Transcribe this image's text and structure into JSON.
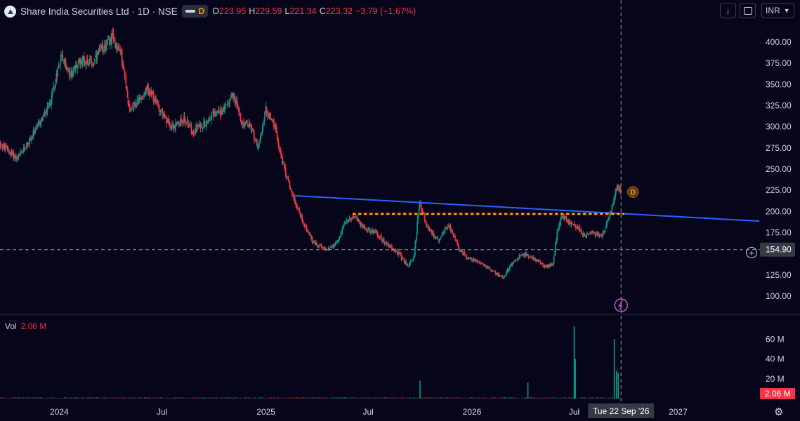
{
  "header": {
    "symbol_title": "Share India Securities Ltd · 1D · NSE",
    "badge": "D",
    "ohlc": [
      {
        "k": "O",
        "v": "223.95"
      },
      {
        "k": "H",
        "v": "229.59"
      },
      {
        "k": "L",
        "v": "221.34"
      },
      {
        "k": "C",
        "v": "223.32"
      },
      {
        "k": "",
        "v": "−3.79 (−1.67%)"
      }
    ]
  },
  "toolbar": {
    "currency": "INR"
  },
  "volume_pane": {
    "label": "Vol",
    "value": "2.06 M"
  },
  "price_marker": "154.90",
  "crosshair_date": "Tue 22 Sep '26",
  "volume_marker": "2.06 M",
  "event_badge": "D",
  "colors": {
    "up": "#089981",
    "down": "#f23645",
    "trendline": "#2962ff",
    "dotted": "#ff9800",
    "background": "#06051a"
  },
  "chart_data": {
    "type": "candlestick",
    "price_axis": {
      "min": 85,
      "max": 415,
      "ticks": [
        400,
        375,
        350,
        325,
        300,
        275,
        250,
        225,
        200,
        175,
        150,
        125,
        100
      ],
      "tick_labels": [
        "400.00",
        "375.00",
        "350.00",
        "325.00",
        "300.00",
        "275.00",
        "250.00",
        "225.00",
        "200.00",
        "175.00",
        "150.00",
        "125.00",
        "100.00"
      ]
    },
    "volume_axis": {
      "min": 0,
      "max": 80,
      "unit": "M",
      "ticks": [
        20,
        40,
        60
      ],
      "tick_labels": [
        "20 M",
        "40 M",
        "60 M"
      ]
    },
    "time_axis": {
      "start": "2023-09-18",
      "end": "2027-05-26",
      "labels": [
        {
          "date": "2024-01-01",
          "text": "2024"
        },
        {
          "date": "2024-07-01",
          "text": "Jul"
        },
        {
          "date": "2025-01-01",
          "text": "2025"
        },
        {
          "date": "2025-07-01",
          "text": "Jul"
        },
        {
          "date": "2026-01-01",
          "text": "2026"
        },
        {
          "date": "2026-07-01",
          "text": "Jul"
        },
        {
          "date": "2027-01-01",
          "text": "2027"
        }
      ]
    },
    "price_path": [
      [
        "2023-09-18",
        280
      ],
      [
        "2023-10-20",
        262
      ],
      [
        "2023-11-20",
        295
      ],
      [
        "2023-12-15",
        325
      ],
      [
        "2024-01-05",
        385
      ],
      [
        "2024-01-20",
        360
      ],
      [
        "2024-02-10",
        380
      ],
      [
        "2024-03-01",
        375
      ],
      [
        "2024-03-20",
        395
      ],
      [
        "2024-04-05",
        405
      ],
      [
        "2024-04-20",
        385
      ],
      [
        "2024-05-05",
        320
      ],
      [
        "2024-05-20",
        330
      ],
      [
        "2024-06-05",
        345
      ],
      [
        "2024-06-25",
        325
      ],
      [
        "2024-07-10",
        305
      ],
      [
        "2024-07-25",
        300
      ],
      [
        "2024-08-10",
        310
      ],
      [
        "2024-08-25",
        295
      ],
      [
        "2024-09-15",
        305
      ],
      [
        "2024-10-01",
        315
      ],
      [
        "2024-10-20",
        320
      ],
      [
        "2024-11-05",
        340
      ],
      [
        "2024-11-20",
        305
      ],
      [
        "2024-12-05",
        300
      ],
      [
        "2024-12-20",
        275
      ],
      [
        "2025-01-01",
        320
      ],
      [
        "2025-01-15",
        305
      ],
      [
        "2025-02-01",
        255
      ],
      [
        "2025-02-20",
        215
      ],
      [
        "2025-03-10",
        185
      ],
      [
        "2025-03-25",
        165
      ],
      [
        "2025-04-15",
        155
      ],
      [
        "2025-05-05",
        160
      ],
      [
        "2025-05-20",
        185
      ],
      [
        "2025-06-05",
        195
      ],
      [
        "2025-06-25",
        180
      ],
      [
        "2025-07-15",
        175
      ],
      [
        "2025-08-05",
        160
      ],
      [
        "2025-08-25",
        150
      ],
      [
        "2025-09-10",
        135
      ],
      [
        "2025-09-20",
        145
      ],
      [
        "2025-10-01",
        210
      ],
      [
        "2025-10-15",
        180
      ],
      [
        "2025-11-05",
        165
      ],
      [
        "2025-11-20",
        185
      ],
      [
        "2025-12-10",
        155
      ],
      [
        "2025-12-25",
        145
      ],
      [
        "2026-01-15",
        140
      ],
      [
        "2026-02-05",
        130
      ],
      [
        "2026-02-25",
        122
      ],
      [
        "2026-03-15",
        140
      ],
      [
        "2026-04-01",
        150
      ],
      [
        "2026-04-20",
        145
      ],
      [
        "2026-05-10",
        135
      ],
      [
        "2026-05-25",
        138
      ],
      [
        "2026-06-01",
        175
      ],
      [
        "2026-06-10",
        195
      ],
      [
        "2026-06-25",
        185
      ],
      [
        "2026-07-10",
        180
      ],
      [
        "2026-07-20",
        170
      ],
      [
        "2026-08-01",
        175
      ],
      [
        "2026-08-20",
        172
      ],
      [
        "2026-09-05",
        200
      ],
      [
        "2026-09-15",
        230
      ],
      [
        "2026-09-22",
        223.32
      ]
    ],
    "trendline": {
      "start": [
        "2025-02-22",
        218.5
      ],
      "end": [
        "2027-05-25",
        188.5
      ]
    },
    "dotted_level": {
      "value": 197,
      "start": "2025-06-05",
      "end": "2026-09-26"
    },
    "volume_spikes": [
      {
        "date": "2025-10-01",
        "value": 18
      },
      {
        "date": "2026-04-10",
        "value": 16
      },
      {
        "date": "2026-07-01",
        "value": 73
      },
      {
        "date": "2026-07-03",
        "value": 40
      },
      {
        "date": "2026-09-10",
        "value": 60
      },
      {
        "date": "2026-09-14",
        "value": 28
      },
      {
        "date": "2026-09-17",
        "value": 26
      }
    ],
    "horizontal_marker": 154.9,
    "crosshair": "2026-09-22"
  }
}
